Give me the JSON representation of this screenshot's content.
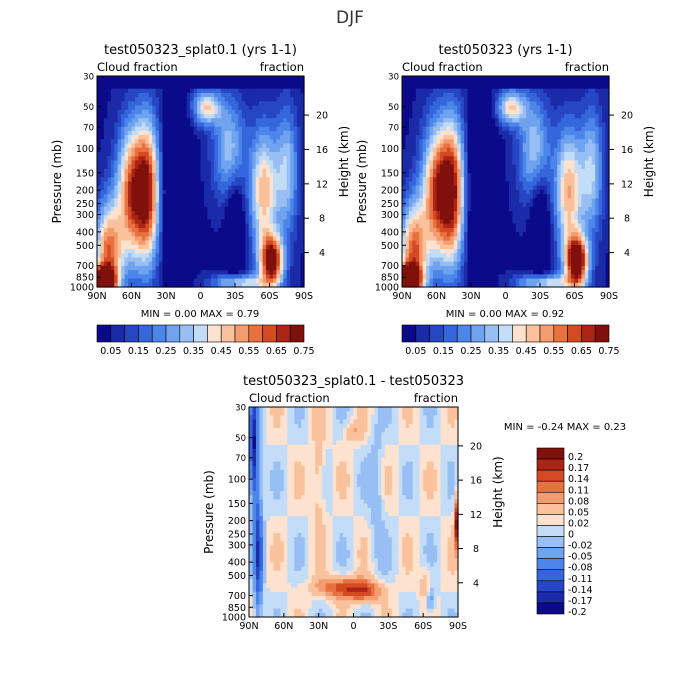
{
  "page_title": "DJF",
  "colors": {
    "seq": [
      "#0a0a8a",
      "#1a2aa8",
      "#2646c4",
      "#3566dc",
      "#4d86ea",
      "#6fa3ef",
      "#98bff3",
      "#c3dcf8",
      "#fde3cf",
      "#f9c29c",
      "#f39c6f",
      "#e8713f",
      "#d34a23",
      "#ac2415",
      "#80100c"
    ],
    "div": [
      "#0a0a8a",
      "#1a2aa8",
      "#2646c4",
      "#3566dc",
      "#4d86ea",
      "#6fa3ef",
      "#98bff3",
      "#c3dcf8",
      "#fde3cf",
      "#f9c29c",
      "#f39c6f",
      "#e8713f",
      "#d34a23",
      "#ac2415",
      "#80100c"
    ]
  },
  "chart_data": [
    {
      "type": "heatmap",
      "title": "test050323_splat0.1 (yrs 1-1)",
      "left_label": "Cloud fraction",
      "right_label": "fraction",
      "xlabel": "",
      "ylabel": "Pressure (mb)",
      "y2label": "Height (km)",
      "x_ticks": [
        "90N",
        "60N",
        "30N",
        "0",
        "30S",
        "60S",
        "90S"
      ],
      "y_ticks": [
        "30",
        "50",
        "70",
        "100",
        "150",
        "200",
        "250",
        "300",
        "400",
        "500",
        "700",
        "850",
        "1000"
      ],
      "y2_ticks": [
        "20",
        "16",
        "12",
        "8",
        "4"
      ],
      "min_label": "MIN =",
      "min_value": "0.00",
      "max_label": "MAX =",
      "max_value": "0.79",
      "colorbar_labels": [
        "0.05",
        "0.15",
        "0.25",
        "0.35",
        "0.45",
        "0.55",
        "0.65",
        "0.75"
      ],
      "field": "model"
    },
    {
      "type": "heatmap",
      "title": "test050323 (yrs 1-1)",
      "left_label": "Cloud fraction",
      "right_label": "fraction",
      "xlabel": "",
      "ylabel": "Pressure (mb)",
      "y2label": "Height (km)",
      "x_ticks": [
        "90N",
        "60N",
        "30N",
        "0",
        "30S",
        "60S",
        "90S"
      ],
      "y_ticks": [
        "30",
        "50",
        "70",
        "100",
        "150",
        "200",
        "250",
        "300",
        "400",
        "500",
        "700",
        "850",
        "1000"
      ],
      "y2_ticks": [
        "20",
        "16",
        "12",
        "8",
        "4"
      ],
      "min_label": "MIN =",
      "min_value": "0.00",
      "max_label": "MAX =",
      "max_value": "0.92",
      "colorbar_labels": [
        "0.05",
        "0.15",
        "0.25",
        "0.35",
        "0.45",
        "0.55",
        "0.65",
        "0.75"
      ],
      "field": "control"
    },
    {
      "type": "heatmap",
      "title": "test050323_splat0.1 - test050323",
      "left_label": "Cloud fraction",
      "right_label": "fraction",
      "xlabel": "",
      "ylabel": "Pressure (mb)",
      "y2label": "Height (km)",
      "x_ticks": [
        "90N",
        "60N",
        "30N",
        "0",
        "30S",
        "60S",
        "90S"
      ],
      "y_ticks": [
        "30",
        "50",
        "70",
        "100",
        "150",
        "200",
        "250",
        "300",
        "400",
        "500",
        "700",
        "850",
        "1000"
      ],
      "y2_ticks": [
        "20",
        "16",
        "12",
        "8",
        "4"
      ],
      "min_label": "MIN =",
      "min_value": "-0.24",
      "max_label": "MAX =",
      "max_value": "0.23",
      "colorbar_labels": [
        "0.2",
        "0.17",
        "0.14",
        "0.11",
        "0.08",
        "0.05",
        "0.02",
        "0",
        "-0.02",
        "-0.05",
        "-0.08",
        "-0.11",
        "-0.14",
        "-0.17",
        "-0.2"
      ],
      "field": "diff"
    }
  ]
}
